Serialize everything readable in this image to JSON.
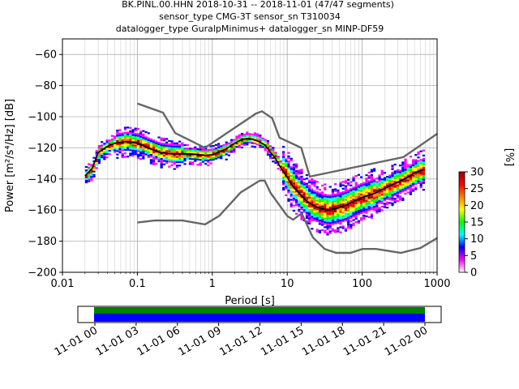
{
  "title_lines": [
    "BK.PINL.00.HHN   2018-10-31 -- 2018-11-01  (47/47 segments)",
    "sensor_type CMG-3T sensor_sn T310034",
    "datalogger_type GuralpMinimus+ datalogger_sn MINP-DF59"
  ],
  "chart_data": {
    "type": "heatmap",
    "xlabel": "Period [s]",
    "ylabel": "Power [m²/s⁴/Hz] [dB]",
    "x_scale": "log",
    "xlim": [
      0.01,
      1000
    ],
    "ylim": [
      -200,
      -50
    ],
    "x_ticks": [
      {
        "value": 0.01,
        "label": "0.01"
      },
      {
        "value": 0.1,
        "label": "0.1"
      },
      {
        "value": 1,
        "label": "1"
      },
      {
        "value": 10,
        "label": "10"
      },
      {
        "value": 100,
        "label": "100"
      },
      {
        "value": 1000,
        "label": "1000"
      }
    ],
    "y_ticks": [
      {
        "value": -60,
        "label": "−60"
      },
      {
        "value": -80,
        "label": "−80"
      },
      {
        "value": -100,
        "label": "−100"
      },
      {
        "value": -120,
        "label": "−120"
      },
      {
        "value": -140,
        "label": "−140"
      },
      {
        "value": -160,
        "label": "−160"
      },
      {
        "value": -180,
        "label": "−180"
      },
      {
        "value": -200,
        "label": "−200"
      }
    ],
    "grid": true,
    "noise_models": {
      "color": "#666666",
      "nhnm": [
        [
          0.1,
          -91.5
        ],
        [
          0.22,
          -97.4
        ],
        [
          0.32,
          -110.5
        ],
        [
          0.8,
          -120
        ],
        [
          3.8,
          -98
        ],
        [
          4.6,
          -96.5
        ],
        [
          6.3,
          -101
        ],
        [
          7.9,
          -113.5
        ],
        [
          15.4,
          -120
        ],
        [
          20,
          -138.5
        ],
        [
          354.8,
          -126
        ],
        [
          1000,
          -111
        ]
      ],
      "nlnm": [
        [
          0.1,
          -168
        ],
        [
          0.17,
          -166.7
        ],
        [
          0.4,
          -166.7
        ],
        [
          0.8,
          -169.2
        ],
        [
          1.24,
          -163.7
        ],
        [
          2.4,
          -148.6
        ],
        [
          4.3,
          -141.1
        ],
        [
          5,
          -141.1
        ],
        [
          6,
          -149
        ],
        [
          10,
          -163.8
        ],
        [
          12,
          -166.2
        ],
        [
          15.6,
          -162.1
        ],
        [
          21.9,
          -177.5
        ],
        [
          31.6,
          -185
        ],
        [
          45,
          -187.5
        ],
        [
          70,
          -187.5
        ],
        [
          101,
          -185
        ],
        [
          154,
          -185
        ],
        [
          328,
          -187.5
        ],
        [
          600,
          -184.4
        ],
        [
          1000,
          -178
        ]
      ]
    },
    "mean_curve": {
      "color": "#000000",
      "points": [
        [
          0.02,
          -138
        ],
        [
          0.025,
          -133
        ],
        [
          0.03,
          -123
        ],
        [
          0.04,
          -119
        ],
        [
          0.05,
          -117
        ],
        [
          0.07,
          -116
        ],
        [
          0.1,
          -117
        ],
        [
          0.14,
          -120
        ],
        [
          0.2,
          -123
        ],
        [
          0.3,
          -124
        ],
        [
          0.5,
          -124
        ],
        [
          0.8,
          -125
        ],
        [
          1,
          -124.5
        ],
        [
          1.5,
          -121
        ],
        [
          2,
          -117
        ],
        [
          2.5,
          -114.5
        ],
        [
          3,
          -114
        ],
        [
          3.5,
          -114.5
        ],
        [
          4,
          -115.5
        ],
        [
          5,
          -118
        ],
        [
          6,
          -123
        ],
        [
          7,
          -127
        ],
        [
          8,
          -132
        ],
        [
          10,
          -139
        ],
        [
          12,
          -145
        ],
        [
          15,
          -150
        ],
        [
          18,
          -154
        ],
        [
          22,
          -157
        ],
        [
          28,
          -159
        ],
        [
          35,
          -160
        ],
        [
          45,
          -159
        ],
        [
          60,
          -157
        ],
        [
          80,
          -154
        ],
        [
          100,
          -152
        ],
        [
          150,
          -149
        ],
        [
          200,
          -146
        ],
        [
          300,
          -142
        ],
        [
          400,
          -139
        ],
        [
          500,
          -136
        ],
        [
          650,
          -134
        ]
      ]
    },
    "heatmap_bands": [
      {
        "p_min": 0.02,
        "p_max": 0.05,
        "spread_db": 4
      },
      {
        "p_min": 0.05,
        "p_max": 0.4,
        "spread_db": 6
      },
      {
        "p_min": 0.4,
        "p_max": 1.5,
        "spread_db": 4
      },
      {
        "p_min": 1.5,
        "p_max": 8,
        "spread_db": 3
      },
      {
        "p_min": 8,
        "p_max": 150,
        "spread_db": 10
      },
      {
        "p_min": 150,
        "p_max": 650,
        "spread_db": 8
      }
    ],
    "colorbar": {
      "label": "[%]",
      "range": [
        0,
        30
      ],
      "ticks": [
        {
          "value": 0,
          "label": "0"
        },
        {
          "value": 5,
          "label": "5"
        },
        {
          "value": 10,
          "label": "10"
        },
        {
          "value": 15,
          "label": "15"
        },
        {
          "value": 20,
          "label": "20"
        },
        {
          "value": 25,
          "label": "25"
        },
        {
          "value": 30,
          "label": "30"
        }
      ],
      "stops": [
        "#ffffff",
        "#ff00ff",
        "#0000ff",
        "#00ffff",
        "#00ff00",
        "#ffff00",
        "#ff8000",
        "#ff0000",
        "#990000"
      ]
    }
  },
  "timeline": {
    "tick_labels": [
      "11-01 00",
      "11-01 03",
      "11-01 06",
      "11-01 09",
      "11-01 12",
      "11-01 15",
      "11-01 18",
      "11-01 21",
      "11-02 00"
    ],
    "bar_colors": {
      "data": "#0000ff",
      "gaps": "#008000"
    }
  }
}
